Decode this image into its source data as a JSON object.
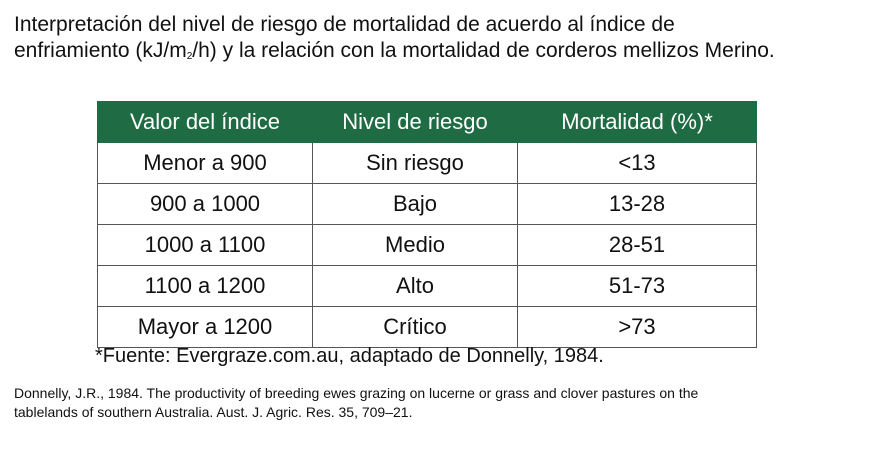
{
  "title": {
    "line1": "Interpretación del nivel de riesgo de mortalidad de acuerdo al índice de",
    "line2_pre": "enfriamiento (kJ/m",
    "line2_sub": "2",
    "line2_post": "/h) y la relación con la mortalidad de corderos mellizos Merino."
  },
  "table": {
    "headers": [
      "Valor del índice",
      "Nivel de riesgo",
      "Mortalidad (%)*"
    ],
    "rows": [
      [
        "Menor a 900",
        "Sin riesgo",
        "<13"
      ],
      [
        "900 a 1000",
        "Bajo",
        "13-28"
      ],
      [
        "1000 a 1100",
        "Medio",
        "28-51"
      ],
      [
        "1100 a 1200",
        "Alto",
        "51-73"
      ],
      [
        "Mayor a 1200",
        "Crítico",
        ">73"
      ]
    ],
    "header_color": "#1f6b43"
  },
  "source": "*Fuente: Evergraze.com.au, adaptado de Donnelly, 1984.",
  "reference": {
    "line1": "Donnelly, J.R., 1984. The productivity of breeding ewes grazing on lucerne or grass and clover pastures on the",
    "line2": "tablelands of southern Australia. Aust. J. Agric. Res. 35, 709–21."
  }
}
